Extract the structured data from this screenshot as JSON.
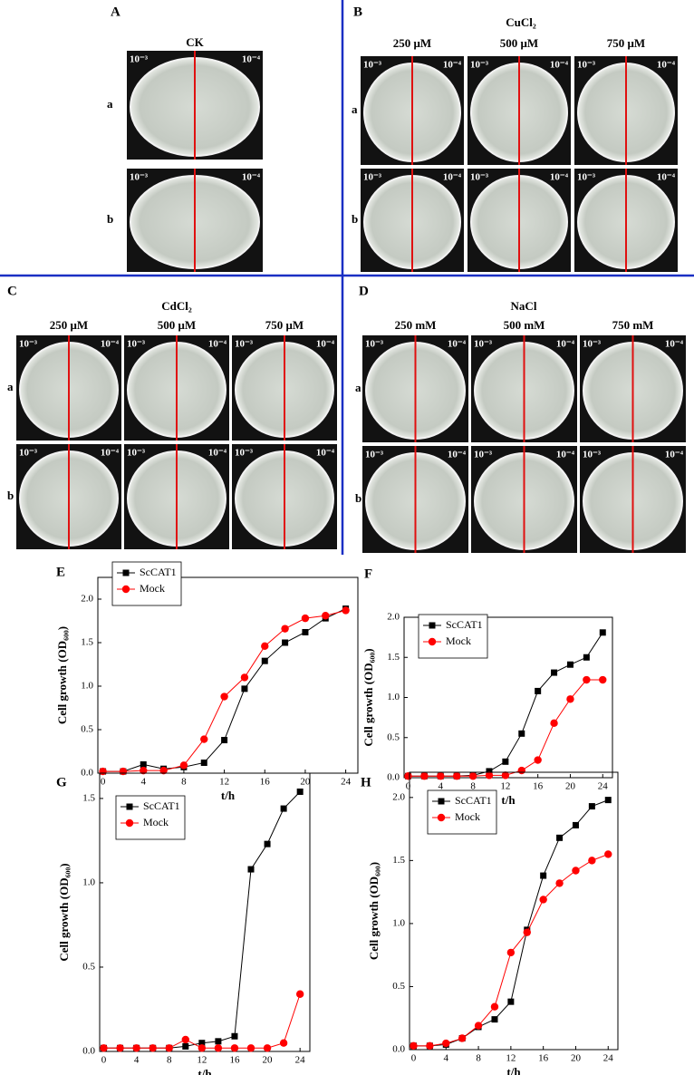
{
  "panels": [
    {
      "label": "A",
      "title": "CK",
      "conditions": [],
      "rows": [
        "a",
        "b"
      ],
      "plates": [
        [
          {
            "left": "10⁻³",
            "right": "10⁻⁴"
          }
        ],
        [
          {
            "left": "10⁻³",
            "right": "10⁻⁴"
          }
        ]
      ]
    },
    {
      "label": "B",
      "title": "CuCl₂",
      "conditions": [
        "250 μM",
        "500 μM",
        "750 μM"
      ],
      "rows": [
        "a",
        "b"
      ],
      "plates": [
        [
          {
            "left": "10⁻³",
            "right": "10⁻⁴"
          },
          {
            "left": "10⁻³",
            "right": "10⁻⁴"
          },
          {
            "left": "10⁻³",
            "right": "10⁻⁴"
          }
        ],
        [
          {
            "left": "10⁻³",
            "right": "10⁻⁴"
          },
          {
            "left": "10⁻³",
            "right": "10⁻⁴"
          },
          {
            "left": "10⁻³",
            "right": "10⁻⁴"
          }
        ]
      ]
    },
    {
      "label": "C",
      "title": "CdCl₂",
      "conditions": [
        "250 μM",
        "500 μM",
        "750 μM"
      ],
      "rows": [
        "a",
        "b"
      ],
      "plates": [
        [
          {
            "left": "10⁻³",
            "right": "10⁻⁴"
          },
          {
            "left": "10⁻³",
            "right": "10⁻⁴"
          },
          {
            "left": "10⁻³",
            "right": "10⁻⁴"
          }
        ],
        [
          {
            "left": "10⁻³",
            "right": "10⁻⁴"
          },
          {
            "left": "10⁻³",
            "right": "10⁻⁴"
          },
          {
            "left": "10⁻³",
            "right": "10⁻⁴"
          }
        ]
      ]
    },
    {
      "label": "D",
      "title": "NaCl",
      "conditions": [
        "250 mM",
        "500 mM",
        "750 mM"
      ],
      "rows": [
        "a",
        "b"
      ],
      "plates": [
        [
          {
            "left": "10⁻³",
            "right": "10⁻⁴"
          },
          {
            "left": "10⁻³",
            "right": "10⁻⁴"
          },
          {
            "left": "10⁻³",
            "right": "10⁻⁴"
          }
        ],
        [
          {
            "left": "10⁻³",
            "right": "10⁻⁴"
          },
          {
            "left": "10⁻³",
            "right": "10⁻⁴"
          },
          {
            "left": "10⁻³",
            "right": "10⁻⁴"
          }
        ]
      ]
    }
  ],
  "chart_data": [
    {
      "type": "line",
      "panel_label": "E",
      "x_label": "t/h",
      "y_label": "Cell growth (OD₆₀₀)",
      "x": [
        0,
        2,
        4,
        6,
        8,
        10,
        12,
        14,
        16,
        18,
        20,
        22,
        24
      ],
      "series": [
        {
          "name": "ScCAT1",
          "color": "#000000",
          "marker": "square",
          "values": [
            0.02,
            0.02,
            0.1,
            0.05,
            0.07,
            0.12,
            0.38,
            0.97,
            1.29,
            1.5,
            1.62,
            1.78,
            1.89
          ]
        },
        {
          "name": "Mock",
          "color": "#ff0000",
          "marker": "circle",
          "values": [
            0.02,
            0.02,
            0.03,
            0.03,
            0.09,
            0.39,
            0.88,
            1.1,
            1.46,
            1.66,
            1.78,
            1.81,
            1.87
          ]
        }
      ],
      "xlim": [
        -0.5,
        25.2
      ],
      "xticks": [
        0,
        4,
        8,
        12,
        16,
        20,
        24
      ],
      "ylim": [
        0,
        2.25
      ],
      "yticks": [
        {
          "value": 0,
          "label": "0.0"
        },
        0.5,
        {
          "value": 1,
          "label": "1.0"
        },
        1.5,
        {
          "value": 2,
          "label": "2.0"
        }
      ],
      "legend": "upper left"
    },
    {
      "type": "line",
      "panel_label": "F",
      "x_label": "t/h",
      "y_label": "Cell growth (OD₆₀₀)",
      "x": [
        0,
        2,
        4,
        6,
        8,
        10,
        12,
        14,
        16,
        18,
        20,
        22,
        24
      ],
      "series": [
        {
          "name": "ScCAT1",
          "color": "#000000",
          "marker": "square",
          "values": [
            0.02,
            0.02,
            0.02,
            0.02,
            0.03,
            0.08,
            0.2,
            0.55,
            1.08,
            1.31,
            1.41,
            1.5,
            1.81
          ]
        },
        {
          "name": "Mock",
          "color": "#ff0000",
          "marker": "circle",
          "values": [
            0.02,
            0.02,
            0.02,
            0.02,
            0.02,
            0.03,
            0.03,
            0.09,
            0.22,
            0.68,
            0.98,
            1.22,
            1.22
          ]
        }
      ],
      "xlim": [
        -0.5,
        25.2
      ],
      "xticks": [
        0,
        4,
        8,
        12,
        16,
        20,
        24
      ],
      "ylim": [
        0,
        2.0
      ],
      "yticks": [
        {
          "value": 0,
          "label": "0.0"
        },
        0.5,
        {
          "value": 1,
          "label": "1.0"
        },
        1.5,
        {
          "value": 2,
          "label": "2.0"
        }
      ],
      "legend": "upper left"
    },
    {
      "type": "line",
      "panel_label": "G",
      "x_label": "t/h",
      "y_label": "Cell growth (OD₆₀₀)",
      "x": [
        0,
        2,
        4,
        6,
        8,
        10,
        12,
        14,
        16,
        18,
        20,
        22,
        24
      ],
      "series": [
        {
          "name": "ScCAT1",
          "color": "#000000",
          "marker": "square",
          "values": [
            0.02,
            0.02,
            0.02,
            0.02,
            0.02,
            0.03,
            0.05,
            0.06,
            0.09,
            1.08,
            1.23,
            1.44,
            1.54
          ]
        },
        {
          "name": "Mock",
          "color": "#ff0000",
          "marker": "circle",
          "values": [
            0.02,
            0.02,
            0.02,
            0.02,
            0.02,
            0.07,
            0.02,
            0.02,
            0.02,
            0.02,
            0.02,
            0.05,
            0.34
          ]
        }
      ],
      "xlim": [
        -0.5,
        25.2
      ],
      "xticks": [
        0,
        4,
        8,
        12,
        16,
        20,
        24
      ],
      "ylim": [
        0,
        1.65
      ],
      "yticks": [
        {
          "value": 0,
          "label": "0.0"
        },
        0.5,
        {
          "value": 1,
          "label": "1.0"
        },
        1.5
      ],
      "legend": "upper left"
    },
    {
      "type": "line",
      "panel_label": "H",
      "x_label": "t/h",
      "y_label": "Cell growth (OD₆₀₀)",
      "x": [
        0,
        2,
        4,
        6,
        8,
        10,
        12,
        14,
        16,
        18,
        20,
        22,
        24
      ],
      "series": [
        {
          "name": "ScCAT1",
          "color": "#000000",
          "marker": "square",
          "values": [
            0.03,
            0.03,
            0.04,
            0.09,
            0.18,
            0.24,
            0.38,
            0.95,
            1.38,
            1.68,
            1.78,
            1.93,
            1.98
          ]
        },
        {
          "name": "Mock",
          "color": "#ff0000",
          "marker": "circle",
          "values": [
            0.03,
            0.03,
            0.05,
            0.09,
            0.19,
            0.34,
            0.77,
            0.93,
            1.19,
            1.32,
            1.42,
            1.5,
            1.55
          ]
        }
      ],
      "xlim": [
        -0.5,
        25.2
      ],
      "xticks": [
        0,
        4,
        8,
        12,
        16,
        20,
        24
      ],
      "ylim": [
        0,
        2.2
      ],
      "yticks": [
        {
          "value": 0,
          "label": "0.0"
        },
        0.5,
        {
          "value": 1,
          "label": "1.0"
        },
        1.5,
        {
          "value": 2,
          "label": "2.0"
        }
      ],
      "legend": "upper left"
    }
  ]
}
